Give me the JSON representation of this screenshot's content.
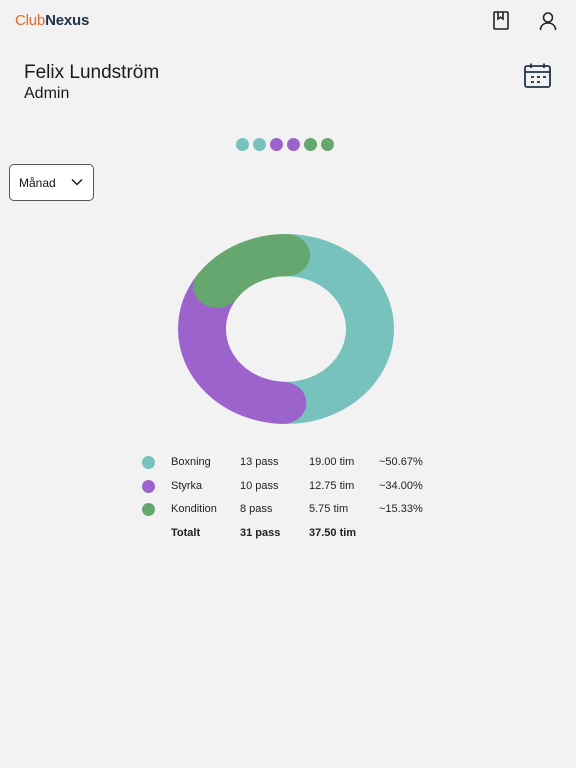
{
  "app": {
    "logo_club": "Club",
    "logo_nexus": "Nexus"
  },
  "header": {
    "bookmark_icon": "bookmark-icon",
    "user_icon": "user-icon"
  },
  "profile": {
    "name": "Felix Lundström",
    "role": "Admin",
    "calendar_icon": "calendar-icon"
  },
  "pager": {
    "dots": [
      {
        "color": "#78c2be"
      },
      {
        "color": "#78c2be"
      },
      {
        "color": "#9d63cc"
      },
      {
        "color": "#9d63cc"
      },
      {
        "color": "#66a66f"
      },
      {
        "color": "#66a66f"
      }
    ]
  },
  "period": {
    "selected": "Månad",
    "icon": "chevron-down-icon"
  },
  "chart_data": {
    "type": "pie",
    "donut": true,
    "series": [
      {
        "name": "Boxning",
        "pass": "13 pass",
        "tim": "19.00 tim",
        "pct": "~50.67%",
        "value": 50.67,
        "color": "#78c2be"
      },
      {
        "name": "Styrka",
        "pass": "10 pass",
        "tim": "12.75 tim",
        "pct": "~34.00%",
        "value": 34.0,
        "color": "#9d63cc"
      },
      {
        "name": "Kondition",
        "pass": "8 pass",
        "tim": "5.75 tim",
        "pct": "~15.33%",
        "value": 15.33,
        "color": "#66a66f"
      }
    ],
    "total": {
      "label": "Totalt",
      "pass": "31 pass",
      "tim": "37.50 tim"
    }
  }
}
